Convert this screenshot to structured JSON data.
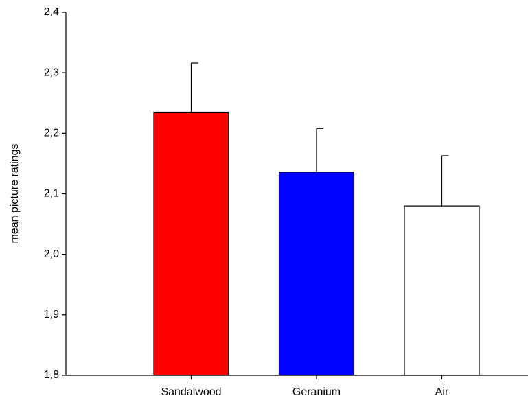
{
  "chart_data": {
    "type": "bar",
    "ylabel": "mean picture ratings",
    "categories": [
      "Sandalwood",
      "Geranium",
      "Air"
    ],
    "values": [
      2.235,
      2.136,
      2.08
    ],
    "errors": [
      0.081,
      0.072,
      0.083
    ],
    "colors": [
      "#ff0000",
      "#0000ff",
      "#ffffff"
    ],
    "ylim": [
      1.8,
      2.4
    ],
    "yticks": [
      {
        "value": 1.8,
        "label": "1,8"
      },
      {
        "value": 1.9,
        "label": "1,9"
      },
      {
        "value": 2.0,
        "label": "2,0"
      },
      {
        "value": 2.1,
        "label": "2,1"
      },
      {
        "value": 2.2,
        "label": "2,2"
      },
      {
        "value": 2.3,
        "label": "2,3"
      },
      {
        "value": 2.4,
        "label": "2,4"
      }
    ],
    "grid": false
  }
}
